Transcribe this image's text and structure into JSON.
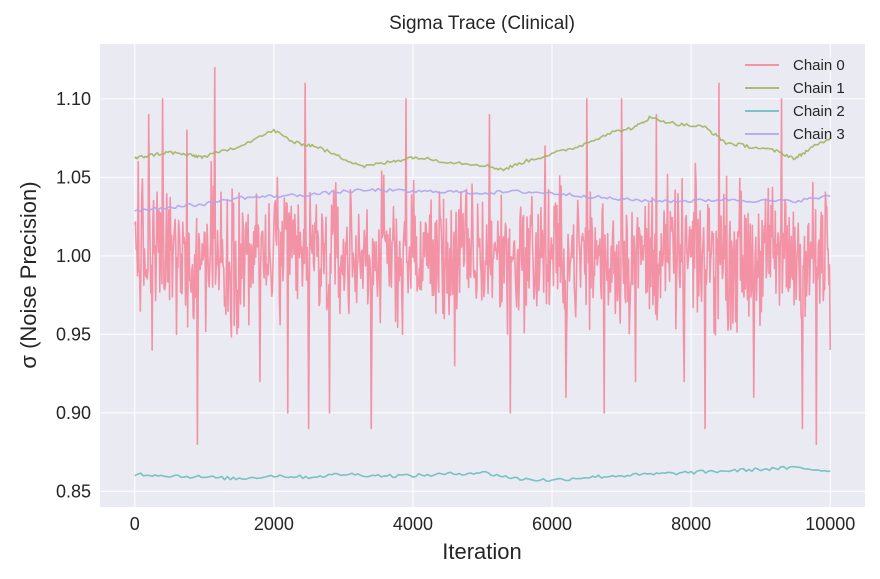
{
  "chart_data": {
    "type": "line",
    "title": "Sigma Trace (Clinical)",
    "xlabel": "Iteration",
    "ylabel": "σ (Noise Precision)",
    "xlim": [
      -500,
      10500
    ],
    "ylim": [
      0.84,
      1.135
    ],
    "xticks": [
      0,
      2000,
      4000,
      6000,
      8000,
      10000
    ],
    "yticks": [
      0.85,
      0.9,
      0.95,
      1.0,
      1.05,
      1.1
    ],
    "ytick_labels": [
      "0.85",
      "0.90",
      "0.95",
      "1.00",
      "1.05",
      "1.10"
    ],
    "grid": true,
    "legend_position": "top-right",
    "series": [
      {
        "name": "Chain 0",
        "color": "#f4879c",
        "mean": 1.0,
        "noise_amplitude": 0.04,
        "points_sampled": 1000,
        "x": [
          0,
          50,
          150,
          200,
          250,
          400,
          600,
          750,
          850,
          900,
          1100,
          1150,
          1500,
          1800,
          2050,
          2200,
          2450,
          2500,
          2800,
          3400,
          3900,
          4600,
          5100,
          5400,
          5900,
          6200,
          6500,
          6750,
          7000,
          7200,
          7500,
          7900,
          8200,
          8400,
          8900,
          9300,
          9600,
          9800,
          10000
        ],
        "y": [
          1.02,
          1.06,
          0.99,
          1.09,
          0.94,
          1.1,
          0.95,
          1.08,
          0.96,
          0.88,
          1.06,
          1.12,
          1.04,
          0.92,
          1.05,
          0.9,
          1.11,
          0.89,
          0.9,
          0.89,
          1.1,
          0.93,
          1.09,
          0.9,
          1.07,
          0.91,
          1.1,
          0.9,
          1.1,
          0.92,
          1.09,
          0.92,
          0.89,
          1.11,
          0.91,
          1.1,
          0.89,
          0.88,
          0.94
        ]
      },
      {
        "name": "Chain 1",
        "color": "#a3b45f",
        "x": [
          0,
          200,
          500,
          800,
          1000,
          1500,
          2000,
          2300,
          2600,
          3000,
          3300,
          3700,
          4000,
          4500,
          5000,
          5300,
          5600,
          6000,
          6400,
          6800,
          7200,
          7400,
          7800,
          8200,
          8500,
          8800,
          9200,
          9500,
          9700,
          10000
        ],
        "y": [
          1.062,
          1.064,
          1.066,
          1.064,
          1.063,
          1.07,
          1.08,
          1.072,
          1.07,
          1.062,
          1.057,
          1.06,
          1.063,
          1.06,
          1.058,
          1.055,
          1.06,
          1.065,
          1.07,
          1.078,
          1.082,
          1.088,
          1.084,
          1.082,
          1.072,
          1.07,
          1.067,
          1.062,
          1.068,
          1.075
        ]
      },
      {
        "name": "Chain 2",
        "color": "#6cbfbd",
        "x": [
          0,
          500,
          1000,
          1500,
          2000,
          2500,
          3000,
          3500,
          4000,
          4500,
          5000,
          5500,
          6000,
          6500,
          7000,
          7500,
          8000,
          8500,
          9000,
          9500,
          10000
        ],
        "y": [
          0.861,
          0.86,
          0.859,
          0.858,
          0.86,
          0.859,
          0.861,
          0.86,
          0.86,
          0.861,
          0.862,
          0.858,
          0.857,
          0.859,
          0.86,
          0.861,
          0.862,
          0.863,
          0.864,
          0.865,
          0.863
        ]
      },
      {
        "name": "Chain 3",
        "color": "#b2a3f0",
        "x": [
          0,
          500,
          1000,
          1500,
          2000,
          2500,
          3000,
          3500,
          4000,
          4500,
          5000,
          5500,
          6000,
          6500,
          7000,
          7500,
          8000,
          8500,
          9000,
          9500,
          10000
        ],
        "y": [
          1.029,
          1.031,
          1.033,
          1.037,
          1.038,
          1.039,
          1.041,
          1.042,
          1.041,
          1.041,
          1.04,
          1.041,
          1.04,
          1.038,
          1.036,
          1.035,
          1.035,
          1.036,
          1.035,
          1.035,
          1.038
        ]
      }
    ]
  }
}
